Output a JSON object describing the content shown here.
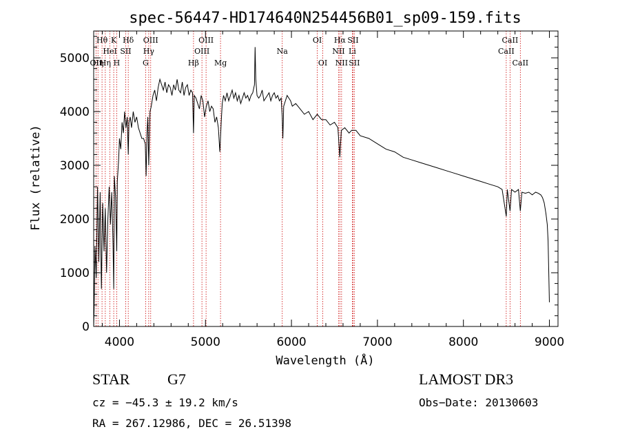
{
  "chart_data": {
    "type": "line",
    "title": "spec-56447-HD174640N254456B01_sp09-159.fits",
    "xlabel": "Wavelength (Å)",
    "ylabel": "Flux (relative)",
    "xlim": [
      3700,
      9100
    ],
    "ylim": [
      0,
      5500
    ],
    "x_ticks": [
      4000,
      5000,
      6000,
      7000,
      8000,
      9000
    ],
    "y_ticks": [
      0,
      1000,
      2000,
      3000,
      4000,
      5000
    ],
    "series": [
      {
        "name": "spectrum",
        "x": [
          3700,
          3705,
          3715,
          3730,
          3745,
          3760,
          3775,
          3790,
          3805,
          3820,
          3835,
          3850,
          3865,
          3880,
          3895,
          3910,
          3925,
          3933,
          3940,
          3955,
          3968,
          3975,
          3990,
          4000,
          4015,
          4030,
          4045,
          4060,
          4075,
          4090,
          4102,
          4110,
          4125,
          4140,
          4160,
          4180,
          4200,
          4220,
          4240,
          4260,
          4280,
          4300,
          4310,
          4320,
          4330,
          4340,
          4355,
          4370,
          4390,
          4410,
          4430,
          4450,
          4470,
          4490,
          4510,
          4530,
          4550,
          4570,
          4590,
          4610,
          4630,
          4650,
          4670,
          4690,
          4710,
          4730,
          4750,
          4770,
          4790,
          4810,
          4830,
          4850,
          4861,
          4870,
          4890,
          4910,
          4930,
          4950,
          4970,
          4990,
          5010,
          5030,
          5050,
          5070,
          5090,
          5110,
          5130,
          5150,
          5167,
          5172,
          5183,
          5195,
          5210,
          5230,
          5250,
          5270,
          5290,
          5310,
          5330,
          5350,
          5370,
          5390,
          5410,
          5430,
          5450,
          5470,
          5490,
          5510,
          5530,
          5550,
          5570,
          5577,
          5585,
          5600,
          5620,
          5640,
          5660,
          5680,
          5700,
          5720,
          5740,
          5760,
          5780,
          5800,
          5820,
          5840,
          5860,
          5880,
          5893,
          5900,
          5910,
          5930,
          5950,
          5970,
          5990,
          6010,
          6050,
          6100,
          6150,
          6200,
          6250,
          6300,
          6350,
          6400,
          6450,
          6500,
          6540,
          6563,
          6580,
          6620,
          6670,
          6700,
          6750,
          6800,
          6900,
          7000,
          7100,
          7200,
          7300,
          7400,
          7500,
          7600,
          7700,
          7800,
          7900,
          8000,
          8100,
          8200,
          8300,
          8400,
          8450,
          8498,
          8510,
          8542,
          8560,
          8600,
          8640,
          8662,
          8680,
          8720,
          8760,
          8800,
          8840,
          8870,
          8900,
          8920,
          8940,
          8960,
          8975,
          8985,
          8993,
          9000
        ],
        "y": [
          0,
          300,
          1500,
          900,
          2600,
          1200,
          2500,
          700,
          2300,
          1400,
          2200,
          1000,
          2000,
          2600,
          1900,
          2500,
          1500,
          700,
          2800,
          2400,
          1400,
          2700,
          3100,
          3500,
          3300,
          3800,
          3600,
          4000,
          3700,
          3900,
          3200,
          3800,
          3900,
          3700,
          4000,
          3800,
          3900,
          3700,
          3600,
          3500,
          3500,
          3400,
          2800,
          3600,
          3900,
          3000,
          4000,
          4100,
          4300,
          4400,
          4200,
          4450,
          4600,
          4500,
          4400,
          4550,
          4350,
          4500,
          4450,
          4300,
          4500,
          4400,
          4600,
          4400,
          4350,
          4550,
          4300,
          4450,
          4500,
          4300,
          4400,
          4350,
          3600,
          4300,
          4250,
          4150,
          4050,
          4300,
          4200,
          3900,
          4100,
          4200,
          4000,
          4100,
          4050,
          3800,
          3900,
          3700,
          3250,
          3400,
          3800,
          4150,
          4300,
          4200,
          4350,
          4200,
          4300,
          4400,
          4250,
          4350,
          4200,
          4300,
          4150,
          4250,
          4350,
          4250,
          4300,
          4200,
          4300,
          4350,
          4500,
          5200,
          4600,
          4300,
          4250,
          4300,
          4400,
          4200,
          4250,
          4300,
          4350,
          4200,
          4300,
          4350,
          4250,
          4300,
          4200,
          4250,
          3900,
          3500,
          4100,
          4200,
          4300,
          4250,
          4200,
          4100,
          4150,
          4050,
          3950,
          4000,
          3850,
          3950,
          3850,
          3850,
          3750,
          3800,
          3700,
          3150,
          3650,
          3700,
          3600,
          3650,
          3650,
          3550,
          3500,
          3400,
          3300,
          3250,
          3150,
          3100,
          3050,
          3000,
          2950,
          2900,
          2850,
          2800,
          2750,
          2700,
          2650,
          2600,
          2550,
          2050,
          2550,
          2150,
          2550,
          2500,
          2550,
          2150,
          2500,
          2480,
          2500,
          2450,
          2500,
          2480,
          2450,
          2400,
          2300,
          2100,
          1900,
          1600,
          1000,
          450
        ]
      }
    ],
    "lines": [
      {
        "wavelength": 3727,
        "label": "OII",
        "row": 3
      },
      {
        "wavelength": 3750,
        "label": "Hη",
        "row": 3
      },
      {
        "wavelength": 3797,
        "label": "Hθ",
        "row": 1
      },
      {
        "wavelength": 3835,
        "label": "Hη",
        "row": 3
      },
      {
        "wavelength": 3889,
        "label": "HeI",
        "row": 2
      },
      {
        "wavelength": 3933,
        "label": "K",
        "row": 1
      },
      {
        "wavelength": 3968,
        "label": "H",
        "row": 3
      },
      {
        "wavelength": 4072,
        "label": "SII",
        "row": 2
      },
      {
        "wavelength": 4102,
        "label": "Hδ",
        "row": 1
      },
      {
        "wavelength": 4304,
        "label": "G",
        "row": 3
      },
      {
        "wavelength": 4340,
        "label": "Hγ",
        "row": 2
      },
      {
        "wavelength": 4363,
        "label": "OIII",
        "row": 1
      },
      {
        "wavelength": 4861,
        "label": "Hβ",
        "row": 3
      },
      {
        "wavelength": 4959,
        "label": "OIII",
        "row": 2
      },
      {
        "wavelength": 5007,
        "label": "OIII",
        "row": 1
      },
      {
        "wavelength": 5175,
        "label": "Mg",
        "row": 3
      },
      {
        "wavelength": 5893,
        "label": "Na",
        "row": 2
      },
      {
        "wavelength": 6300,
        "label": "OI",
        "row": 1
      },
      {
        "wavelength": 6364,
        "label": "OI",
        "row": 3
      },
      {
        "wavelength": 6548,
        "label": "NII",
        "row": 2
      },
      {
        "wavelength": 6563,
        "label": "Hα",
        "row": 1
      },
      {
        "wavelength": 6583,
        "label": "NII",
        "row": 3
      },
      {
        "wavelength": 6708,
        "label": "Li",
        "row": 2
      },
      {
        "wavelength": 6716,
        "label": "SII",
        "row": 1
      },
      {
        "wavelength": 6731,
        "label": "SII",
        "row": 3
      },
      {
        "wavelength": 8498,
        "label": "CaII",
        "row": 2
      },
      {
        "wavelength": 8542,
        "label": "CaII",
        "row": 1
      },
      {
        "wavelength": 8662,
        "label": "CaII",
        "row": 3
      }
    ]
  },
  "info": {
    "object_class": "STAR",
    "subclass": "G7",
    "survey": "LAMOST DR3",
    "redshift": "cz = −45.3 ± 19.2 km/s",
    "obs_date": "Obs−Date: 20130603",
    "coords": "RA = 267.12986, DEC =  26.51398"
  },
  "colors": {
    "spectrum": "#000000",
    "line_markers": "#cc0000",
    "axes": "#000000"
  }
}
